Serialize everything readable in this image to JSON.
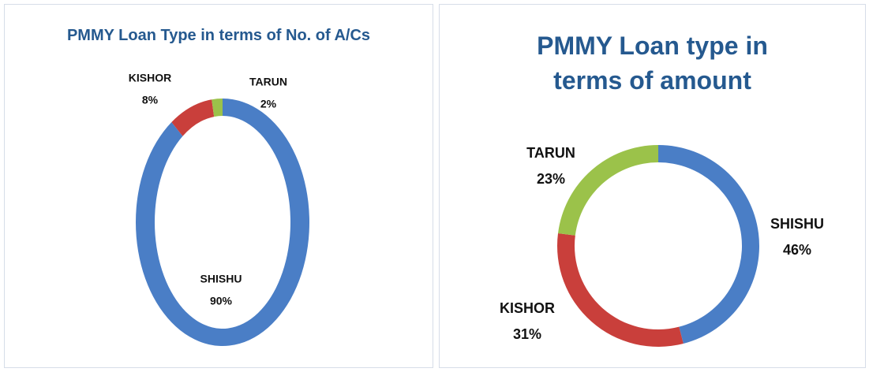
{
  "chart_data": [
    {
      "type": "donut",
      "title": "PMMY Loan Type in terms of No. of A/Cs",
      "categories": [
        "SHISHU",
        "KISHOR",
        "TARUN"
      ],
      "values": [
        90,
        8,
        2
      ],
      "value_labels": [
        "90%",
        "8%",
        "2%"
      ],
      "colors": [
        "#4a7ec6",
        "#c93f3b",
        "#9bc24a"
      ]
    },
    {
      "type": "donut",
      "title": "PMMY Loan type in terms of amount",
      "categories": [
        "SHISHU",
        "KISHOR",
        "TARUN"
      ],
      "values": [
        46,
        31,
        23
      ],
      "value_labels": [
        "46%",
        "31%",
        "23%"
      ],
      "colors": [
        "#4a7ec6",
        "#c93f3b",
        "#9bc24a"
      ]
    }
  ]
}
